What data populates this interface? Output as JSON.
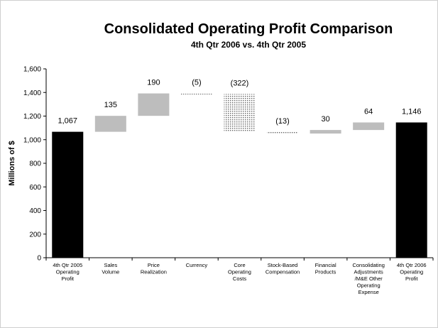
{
  "chart_data": {
    "type": "bar",
    "title": "Consolidated Operating Profit Comparison",
    "subtitle": "4th Qtr 2006 vs. 4th Qtr 2005",
    "ylabel": "Millions of $",
    "ylim": [
      0,
      1600
    ],
    "yticks": [
      "0",
      "200",
      "400",
      "600",
      "800",
      "1,000",
      "1,200",
      "1,400",
      "1,600"
    ],
    "colors": {
      "total": "#000000",
      "increase": "#bdbdbd",
      "decrease": "#8c8c8c"
    },
    "bars": [
      {
        "category": "4th Qtr 2005 Operating Profit",
        "label_lines": [
          "4th Qtr 2005",
          "Operating",
          "Profit"
        ],
        "kind": "total",
        "start": 0,
        "end": 1067,
        "value_label": "1,067"
      },
      {
        "category": "Sales Volume",
        "label_lines": [
          "Sales",
          "Volume"
        ],
        "kind": "increase",
        "start": 1067,
        "end": 1202,
        "value_label": "135"
      },
      {
        "category": "Price Realization",
        "label_lines": [
          "Price",
          "Realization"
        ],
        "kind": "increase",
        "start": 1202,
        "end": 1392,
        "value_label": "190"
      },
      {
        "category": "Currency",
        "label_lines": [
          "Currency"
        ],
        "kind": "decrease",
        "start": 1392,
        "end": 1387,
        "value_label": "(5)"
      },
      {
        "category": "Core Operating Costs",
        "label_lines": [
          "Core",
          "Operating",
          "Costs"
        ],
        "kind": "decrease",
        "start": 1387,
        "end": 1065,
        "value_label": "(322)"
      },
      {
        "category": "Stock-Based Compensation",
        "label_lines": [
          "Stock-Based",
          "Compensation"
        ],
        "kind": "decrease",
        "start": 1065,
        "end": 1052,
        "value_label": "(13)"
      },
      {
        "category": "Financial Products",
        "label_lines": [
          "Financial",
          "Products"
        ],
        "kind": "increase",
        "start": 1052,
        "end": 1082,
        "value_label": "30"
      },
      {
        "category": "Consolidating Adjustments /M&E Other Operating Expense",
        "label_lines": [
          "Consolidating",
          "Adjustments",
          "/M&E Other",
          "Operating",
          "Expense"
        ],
        "kind": "increase",
        "start": 1082,
        "end": 1146,
        "value_label": "64"
      },
      {
        "category": "4th Qtr 2006 Operating Profit",
        "label_lines": [
          "4th Qtr 2006",
          "Operating",
          "Profit"
        ],
        "kind": "total",
        "start": 0,
        "end": 1146,
        "value_label": "1,146"
      }
    ]
  }
}
